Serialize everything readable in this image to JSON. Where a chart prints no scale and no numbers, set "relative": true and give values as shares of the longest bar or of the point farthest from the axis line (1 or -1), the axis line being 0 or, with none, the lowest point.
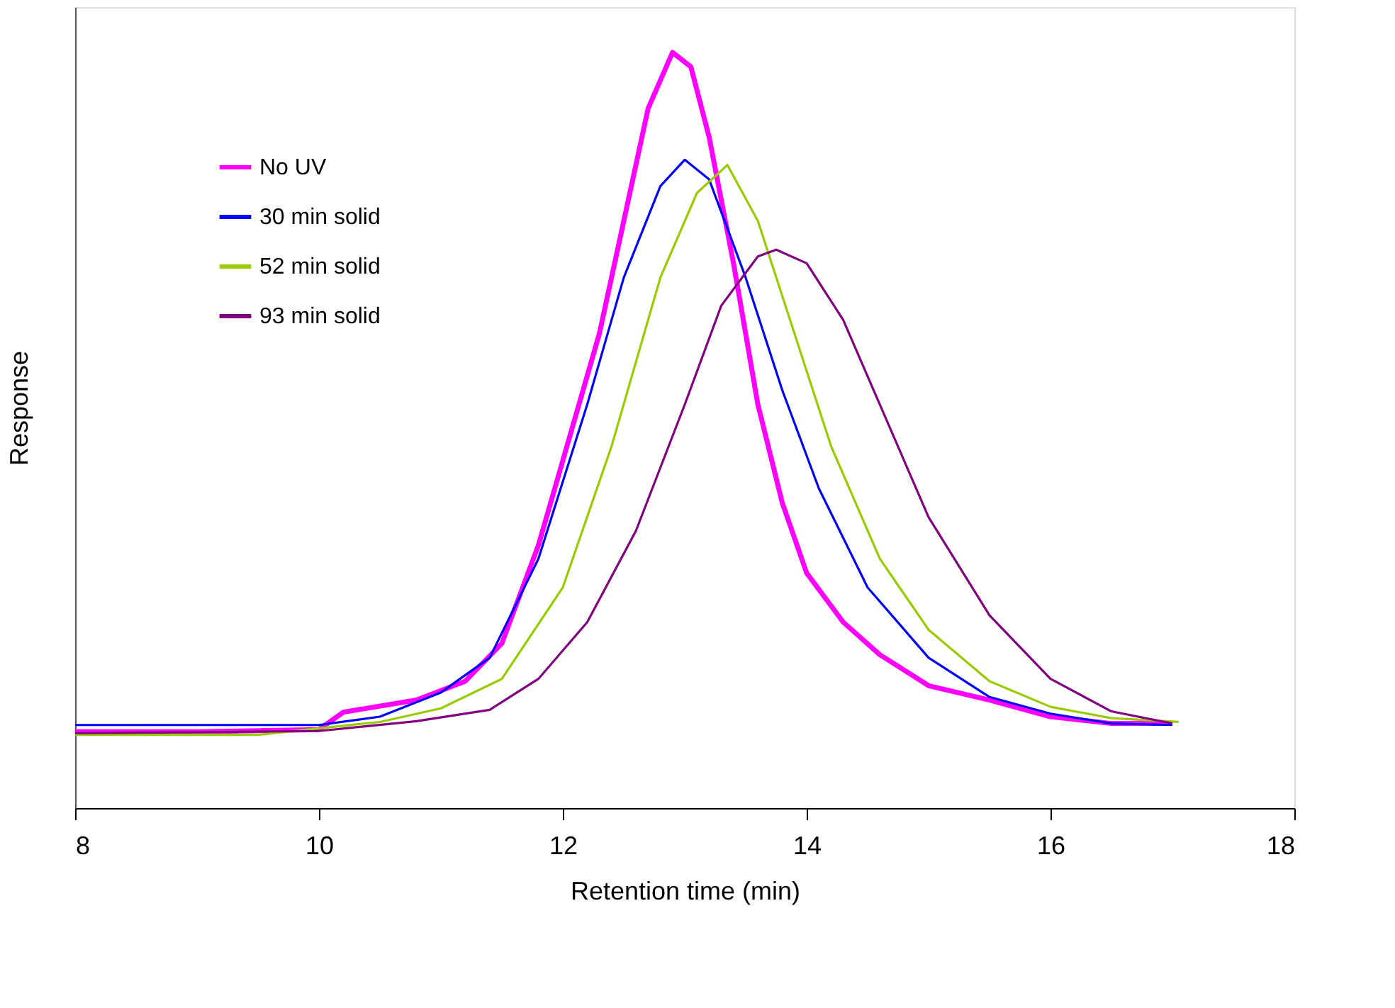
{
  "chart_data": {
    "type": "line",
    "relative": true,
    "xlabel": "Retention time (min)",
    "ylabel": "Response",
    "xlim": [
      8,
      18
    ],
    "xticks": [
      8,
      10,
      12,
      14,
      16,
      18
    ],
    "legend": "top left",
    "grid": false,
    "series": [
      {
        "name": "No UV",
        "color": "#ff00ff",
        "x": [
          8,
          9,
          10,
          10.2,
          10.8,
          11.2,
          11.5,
          11.8,
          12.0,
          12.3,
          12.5,
          12.7,
          12.9,
          13.05,
          13.2,
          13.4,
          13.6,
          13.8,
          14.0,
          14.3,
          14.6,
          15.0,
          15.5,
          16.0,
          16.5,
          17.0
        ],
        "values": [
          0.101,
          0.101,
          0.104,
          0.127,
          0.143,
          0.168,
          0.218,
          0.348,
          0.46,
          0.628,
          0.777,
          0.926,
          1,
          0.981,
          0.888,
          0.721,
          0.534,
          0.404,
          0.311,
          0.246,
          0.203,
          0.162,
          0.143,
          0.121,
          0.112,
          0.112
        ]
      },
      {
        "name": "30 min solid",
        "color": "#0000ff",
        "x": [
          8,
          9,
          10,
          10.5,
          11.0,
          11.4,
          11.8,
          12.2,
          12.5,
          12.8,
          13.0,
          13.2,
          13.5,
          13.8,
          14.1,
          14.5,
          15.0,
          15.5,
          16.0,
          16.5,
          17.0
        ],
        "values": [
          0.11,
          0.11,
          0.11,
          0.121,
          0.153,
          0.199,
          0.33,
          0.534,
          0.702,
          0.823,
          0.858,
          0.832,
          0.702,
          0.553,
          0.423,
          0.292,
          0.199,
          0.147,
          0.125,
          0.112,
          0.11
        ]
      },
      {
        "name": "52 min solid",
        "color": "#99cc00",
        "x": [
          8,
          9.5,
          10.5,
          11.0,
          11.5,
          12.0,
          12.4,
          12.8,
          13.1,
          13.35,
          13.6,
          13.9,
          14.2,
          14.6,
          15.0,
          15.5,
          16.0,
          16.5,
          17.05
        ],
        "values": [
          0.097,
          0.097,
          0.114,
          0.132,
          0.171,
          0.292,
          0.479,
          0.702,
          0.814,
          0.851,
          0.777,
          0.628,
          0.479,
          0.33,
          0.236,
          0.168,
          0.134,
          0.119,
          0.114
        ]
      },
      {
        "name": "93 min solid",
        "color": "#800080",
        "x": [
          8,
          10,
          10.8,
          11.4,
          11.8,
          12.2,
          12.6,
          13.0,
          13.3,
          13.6,
          13.75,
          14.0,
          14.3,
          14.6,
          15.0,
          15.5,
          16.0,
          16.5,
          17.0
        ],
        "values": [
          0.099,
          0.102,
          0.115,
          0.13,
          0.171,
          0.246,
          0.367,
          0.534,
          0.665,
          0.73,
          0.739,
          0.721,
          0.646,
          0.534,
          0.385,
          0.255,
          0.171,
          0.128,
          0.112
        ]
      }
    ]
  }
}
